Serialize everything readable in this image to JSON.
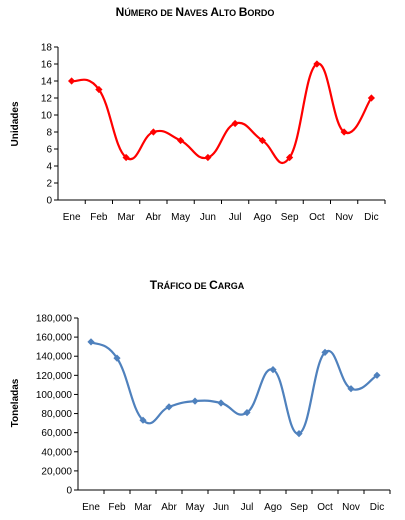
{
  "chart_data": [
    {
      "type": "line",
      "title_first": "N",
      "title_rest": "ÚMERO DE ",
      "title_w2_first": "N",
      "title_w2_rest": "AVES ",
      "title_w3_first": "A",
      "title_w3_rest": "LTO ",
      "title_w4_first": "B",
      "title_w4_rest": "ORDO",
      "ylabel": "Unidades",
      "categories": [
        "Ene",
        "Feb",
        "Mar",
        "Abr",
        "May",
        "Jun",
        "Jul",
        "Ago",
        "Sep",
        "Oct",
        "Nov",
        "Dic"
      ],
      "ylim": [
        0,
        18
      ],
      "yticks": [
        "0",
        "2",
        "4",
        "6",
        "8",
        "10",
        "12",
        "14",
        "16",
        "18"
      ],
      "series": [
        {
          "values": [
            14,
            13,
            5,
            8,
            7,
            5,
            9,
            7,
            5,
            16,
            8,
            12
          ],
          "color": "#ff0000",
          "marker": "diamond"
        }
      ]
    },
    {
      "type": "line",
      "title_w1_first": "T",
      "title_w1_rest": "RÁFICO DE ",
      "title_w2_first": "C",
      "title_w2_rest": "ARGA",
      "ylabel": "Toneladas",
      "categories": [
        "Ene",
        "Feb",
        "Mar",
        "Abr",
        "May",
        "Jun",
        "Jul",
        "Ago",
        "Sep",
        "Oct",
        "Nov",
        "Dic"
      ],
      "ylim": [
        0,
        180000
      ],
      "yticks": [
        "0",
        "20,000",
        "40,000",
        "60,000",
        "80,000",
        "100,000",
        "120,000",
        "140,000",
        "160,000",
        "180,000"
      ],
      "series": [
        {
          "values": [
            155000,
            138000,
            73000,
            87000,
            93000,
            91000,
            81000,
            126000,
            59000,
            144000,
            106000,
            120000
          ],
          "color": "#4f81bd",
          "marker": "diamond"
        }
      ]
    }
  ]
}
